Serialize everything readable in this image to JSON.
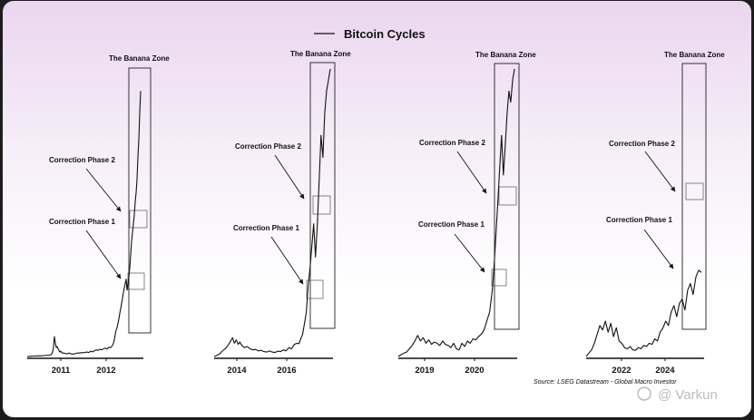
{
  "chart_data": {
    "type": "line",
    "title": "Bitcoin Cycles",
    "legend": {
      "label": "Bitcoin Cycles",
      "position": "top-center"
    },
    "source": "Source: LSEG Datastream - Global Macro Investor",
    "watermark": "@ Varkun",
    "panels": [
      {
        "name": "cycle-1",
        "x_ticks": [
          "2011",
          "2012"
        ],
        "zone_label": "The Banana Zone",
        "annotations": [
          "Correction Phase 2",
          "Correction Phase 1"
        ],
        "x": [
          0,
          3,
          6,
          9,
          12,
          15,
          18,
          21,
          24,
          26,
          27,
          28,
          29,
          30,
          31,
          32,
          33,
          34,
          35,
          36,
          37,
          38,
          39,
          40,
          42,
          44,
          46,
          48,
          50,
          52,
          54,
          56,
          58,
          60,
          62,
          64,
          66,
          68,
          70,
          72,
          74,
          76,
          78,
          80,
          82,
          84,
          86,
          88,
          90,
          92,
          94,
          95,
          96,
          97,
          98,
          99,
          100,
          101,
          102,
          103,
          104,
          105,
          106,
          107,
          108,
          109,
          110,
          111,
          112,
          113,
          114,
          115,
          116,
          117,
          118,
          119,
          120,
          121,
          122,
          123,
          124,
          125
        ],
        "y": [
          0,
          1,
          2,
          2,
          3,
          3,
          4,
          5,
          6,
          8,
          12,
          20,
          45,
          90,
          60,
          40,
          45,
          35,
          28,
          20,
          24,
          18,
          15,
          16,
          14,
          12,
          16,
          12,
          11,
          12,
          14,
          17,
          15,
          18,
          17,
          19,
          20,
          18,
          24,
          21,
          26,
          30,
          28,
          33,
          30,
          35,
          38,
          34,
          42,
          40,
          50,
          60,
          75,
          100,
          120,
          130,
          150,
          170,
          195,
          215,
          240,
          262,
          290,
          310,
          330,
          350,
          300,
          330,
          360,
          400,
          460,
          520,
          560,
          600,
          640,
          700,
          740,
          800,
          900,
          980,
          1100,
          1200
        ]
      },
      {
        "name": "cycle-2",
        "x_ticks": [
          "2014",
          "2016"
        ],
        "zone_label": "The Banana Zone",
        "annotations": [
          "Correction Phase 2",
          "Correction Phase 1"
        ],
        "x": [
          0,
          3,
          6,
          9,
          12,
          15,
          18,
          20,
          22,
          24,
          26,
          28,
          30,
          33,
          36,
          39,
          42,
          45,
          48,
          51,
          54,
          57,
          60,
          63,
          66,
          69,
          72,
          75,
          78,
          81,
          84,
          87,
          90,
          92,
          94,
          96,
          98,
          100,
          102,
          104,
          106,
          108,
          110,
          112,
          114,
          116,
          118,
          120,
          122,
          124,
          126
        ],
        "y": [
          0,
          5,
          12,
          25,
          35,
          50,
          70,
          85,
          60,
          75,
          55,
          65,
          50,
          40,
          45,
          35,
          30,
          32,
          25,
          28,
          22,
          20,
          25,
          20,
          18,
          24,
          22,
          30,
          26,
          40,
          35,
          55,
          60,
          58,
          80,
          100,
          150,
          200,
          320,
          400,
          500,
          600,
          450,
          600,
          800,
          1000,
          900,
          1100,
          1200,
          1250,
          1300
        ]
      },
      {
        "name": "cycle-3",
        "x_ticks": [
          "2019",
          "2020"
        ],
        "zone_label": "The Banana Zone",
        "annotations": [
          "Correction Phase 2",
          "Correction Phase 1"
        ],
        "x": [
          0,
          3,
          6,
          9,
          12,
          15,
          18,
          21,
          24,
          27,
          30,
          33,
          36,
          39,
          42,
          45,
          48,
          51,
          54,
          57,
          60,
          63,
          66,
          69,
          72,
          75,
          78,
          81,
          84,
          87,
          90,
          93,
          96,
          99,
          102,
          104,
          106,
          108,
          110,
          112,
          114,
          116,
          118,
          120,
          122,
          124,
          126
        ],
        "y": [
          0,
          8,
          15,
          20,
          35,
          50,
          70,
          95,
          70,
          85,
          60,
          75,
          55,
          65,
          60,
          50,
          70,
          55,
          50,
          40,
          60,
          35,
          30,
          60,
          45,
          70,
          60,
          80,
          75,
          90,
          100,
          120,
          160,
          200,
          300,
          420,
          560,
          700,
          850,
          1000,
          820,
          950,
          1100,
          1200,
          1150,
          1250,
          1300
        ]
      },
      {
        "name": "cycle-4",
        "x_ticks": [
          "2022",
          "2024"
        ],
        "zone_label": "The Banana Zone",
        "annotations": [
          "Correction Phase 2",
          "Correction Phase 1"
        ],
        "x": [
          0,
          3,
          6,
          9,
          12,
          15,
          18,
          21,
          24,
          27,
          30,
          33,
          36,
          39,
          42,
          45,
          48,
          51,
          54,
          57,
          60,
          63,
          66,
          69,
          72,
          75,
          78,
          81,
          84,
          87,
          90,
          93,
          96,
          99,
          102,
          105,
          108,
          111,
          114,
          117,
          120,
          123,
          126
        ],
        "y": [
          0,
          15,
          30,
          60,
          100,
          140,
          120,
          160,
          110,
          150,
          90,
          130,
          70,
          60,
          40,
          35,
          45,
          30,
          28,
          40,
          35,
          50,
          45,
          60,
          55,
          80,
          70,
          110,
          130,
          160,
          140,
          200,
          230,
          180,
          240,
          260,
          210,
          300,
          330,
          280,
          360,
          390,
          380
        ]
      }
    ]
  }
}
